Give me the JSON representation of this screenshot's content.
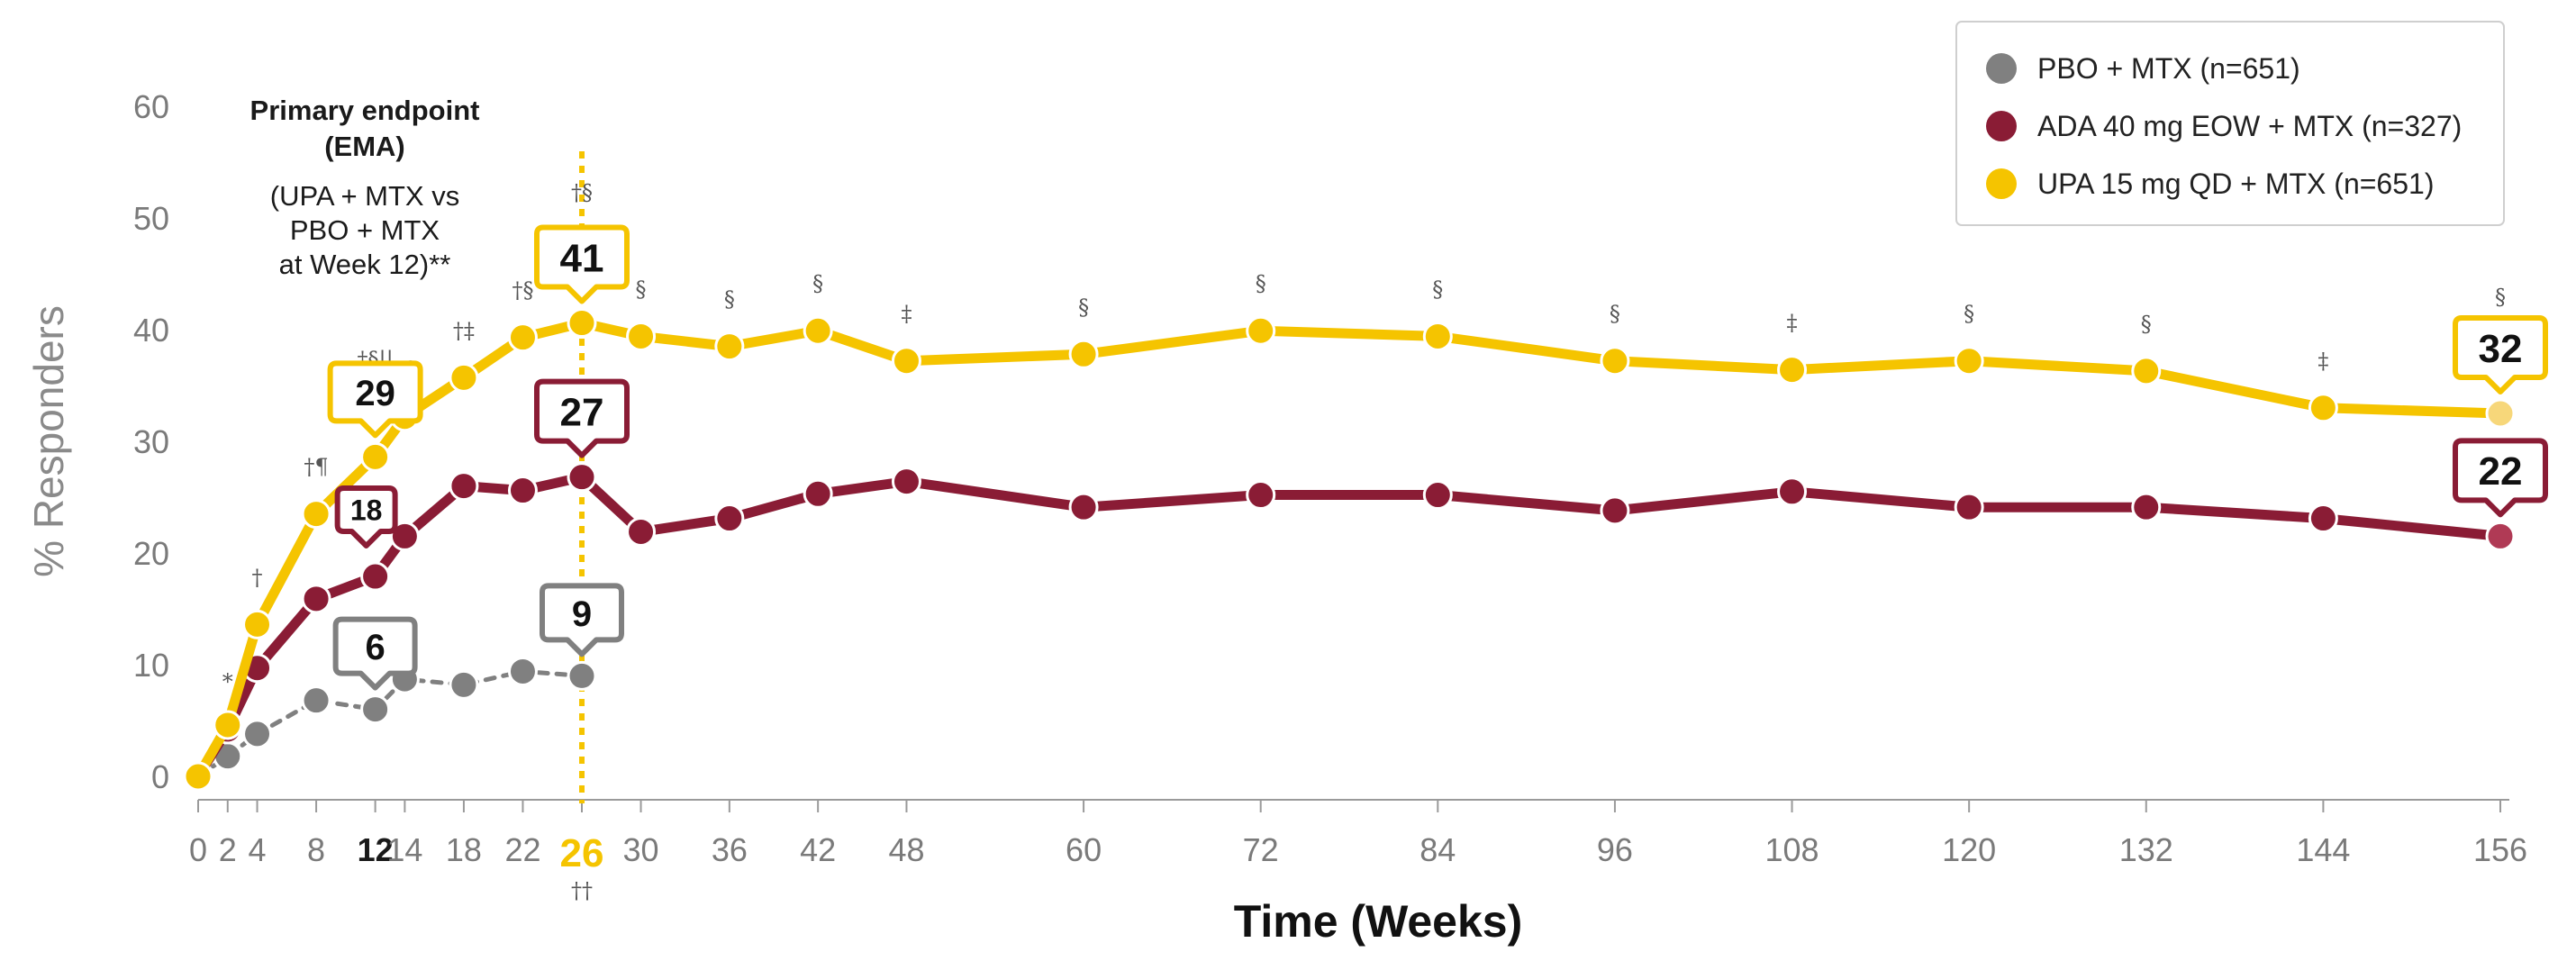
{
  "chart_data": {
    "type": "line",
    "xlabel": "Time (Weeks)",
    "ylabel": "% Responders",
    "ylim": [
      0,
      60
    ],
    "y_ticks": [
      "0",
      "10",
      "20",
      "30",
      "40",
      "50",
      "60"
    ],
    "x": [
      0,
      2,
      4,
      8,
      12,
      14,
      18,
      22,
      26,
      30,
      36,
      42,
      48,
      60,
      72,
      84,
      96,
      108,
      120,
      132,
      144,
      156
    ],
    "x_tick_labels": [
      "0",
      "2",
      "4",
      "8",
      "12",
      "14",
      "18",
      "22",
      "26",
      "30",
      "36",
      "42",
      "48",
      "60",
      "72",
      "84",
      "96",
      "108",
      "120",
      "132",
      "144",
      "156"
    ],
    "x_bold_ticks": [
      "12"
    ],
    "x_highlight_tick": "26",
    "x_highlight_note": "††",
    "reference_line_x": 26,
    "grid": false,
    "legend_position": "top-right",
    "series": [
      {
        "name": "PBO + MTX (n=651)",
        "color": "#808080",
        "style": "dashed",
        "x": [
          0,
          2,
          4,
          8,
          12,
          14,
          18,
          22,
          26
        ],
        "values": [
          0,
          1.8,
          3.8,
          6.8,
          6.0,
          8.7,
          8.2,
          9.4,
          9.0
        ],
        "callouts": [
          {
            "x": 12,
            "label": "6"
          },
          {
            "x": 26,
            "label": "9"
          }
        ]
      },
      {
        "name": "ADA 40 mg EOW + MTX (n=327)",
        "color": "#8a1c35",
        "style": "solid",
        "x": [
          0,
          2,
          4,
          8,
          12,
          14,
          18,
          22,
          26,
          30,
          36,
          42,
          48,
          60,
          72,
          84,
          96,
          108,
          120,
          132,
          144,
          156
        ],
        "values": [
          0,
          4.2,
          9.7,
          15.9,
          17.9,
          21.5,
          26.0,
          25.6,
          26.8,
          21.9,
          23.1,
          25.3,
          26.4,
          24.1,
          25.2,
          25.2,
          23.8,
          25.5,
          24.1,
          24.1,
          23.1,
          21.5
        ],
        "callouts": [
          {
            "x": 12,
            "label": "18"
          },
          {
            "x": 26,
            "label": "27"
          },
          {
            "x": 156,
            "label": "22"
          }
        ]
      },
      {
        "name": "UPA 15 mg QD + MTX (n=651)",
        "color": "#f5c400",
        "style": "solid",
        "x": [
          0,
          2,
          4,
          8,
          12,
          14,
          18,
          22,
          26,
          30,
          36,
          42,
          48,
          60,
          72,
          84,
          96,
          108,
          120,
          132,
          144,
          156
        ],
        "values": [
          0,
          4.6,
          13.6,
          23.5,
          28.6,
          32.2,
          35.7,
          39.3,
          40.6,
          39.4,
          38.5,
          39.9,
          37.2,
          37.8,
          39.9,
          39.4,
          37.2,
          36.4,
          37.2,
          36.3,
          33.0,
          32.5
        ],
        "callouts": [
          {
            "x": 12,
            "label": "29"
          },
          {
            "x": 26,
            "label": "41"
          },
          {
            "x": 156,
            "label": "32"
          }
        ]
      }
    ],
    "significance_marks": [
      {
        "x": 2,
        "label": "*"
      },
      {
        "x": 4,
        "label": "†"
      },
      {
        "x": 8,
        "label": "†¶"
      },
      {
        "x": 12,
        "label": "†§||"
      },
      {
        "x": 14,
        "label": "†§"
      },
      {
        "x": 18,
        "label": "†‡"
      },
      {
        "x": 22,
        "label": "†§"
      },
      {
        "x": 26,
        "label": "†§"
      },
      {
        "x": 30,
        "label": "§"
      },
      {
        "x": 36,
        "label": "§"
      },
      {
        "x": 42,
        "label": "§"
      },
      {
        "x": 48,
        "label": "‡"
      },
      {
        "x": 60,
        "label": "§"
      },
      {
        "x": 72,
        "label": "§"
      },
      {
        "x": 84,
        "label": "§"
      },
      {
        "x": 96,
        "label": "§"
      },
      {
        "x": 108,
        "label": "‡"
      },
      {
        "x": 120,
        "label": "§"
      },
      {
        "x": 132,
        "label": "§"
      },
      {
        "x": 144,
        "label": "‡"
      },
      {
        "x": 156,
        "label": "§"
      }
    ],
    "annotation": {
      "title_line1": "Primary endpoint",
      "title_line2": "(EMA)",
      "line3": "(UPA + MTX vs",
      "line4": "PBO + MTX",
      "line5": "at Week 12)**"
    }
  }
}
